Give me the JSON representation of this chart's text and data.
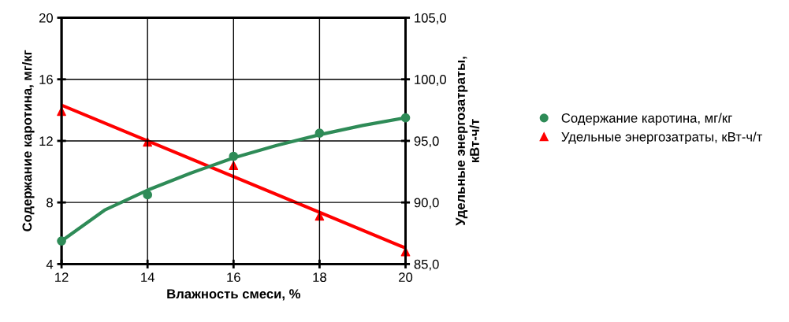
{
  "chart_data": {
    "type": "scatter",
    "xlabel": "Влажность смеси, %",
    "ylabel": "Содержание каротина, мг/кг",
    "y2label": "Удельные энергозатраты,\nкВт-ч/т",
    "x": [
      12,
      14,
      16,
      18,
      20
    ],
    "series": [
      {
        "name": "Содержание каротина, мг/кг",
        "marker": "circle",
        "color": "#2e8b57",
        "values": [
          5.5,
          8.5,
          11.0,
          12.5,
          13.5
        ]
      },
      {
        "name": "Удельные энергозатраты, кВт-ч/т",
        "marker": "triangle",
        "axis": "y2",
        "color": "#ff0000",
        "values": [
          97.4,
          94.9,
          93.0,
          88.9,
          86.0
        ]
      },
      {
        "type": "line",
        "marker": "none",
        "color": "#2e8b57",
        "x": [
          12,
          13,
          14,
          15,
          16,
          17,
          18,
          19,
          20
        ],
        "values": [
          5.5,
          7.5,
          8.8,
          9.9,
          10.9,
          11.7,
          12.4,
          13.0,
          13.5
        ]
      },
      {
        "type": "line",
        "marker": "none",
        "axis": "y2",
        "color": "#ff0000",
        "x": [
          12,
          20
        ],
        "values": [
          97.9,
          86.3
        ]
      }
    ],
    "xlim": [
      12,
      20
    ],
    "xticks": [
      12,
      14,
      16,
      18,
      20
    ],
    "ylim": [
      4,
      20
    ],
    "yticks": [
      4,
      8,
      12,
      16,
      20
    ],
    "y2lim": [
      85,
      105
    ],
    "y2ticks": [
      {
        "value": 85,
        "label": "85,0"
      },
      {
        "value": 90,
        "label": "90,0"
      },
      {
        "value": 95,
        "label": "95,0"
      },
      {
        "value": 100,
        "label": "100,0"
      },
      {
        "value": 105,
        "label": "105,0"
      }
    ],
    "grid": true,
    "legend": "right"
  }
}
